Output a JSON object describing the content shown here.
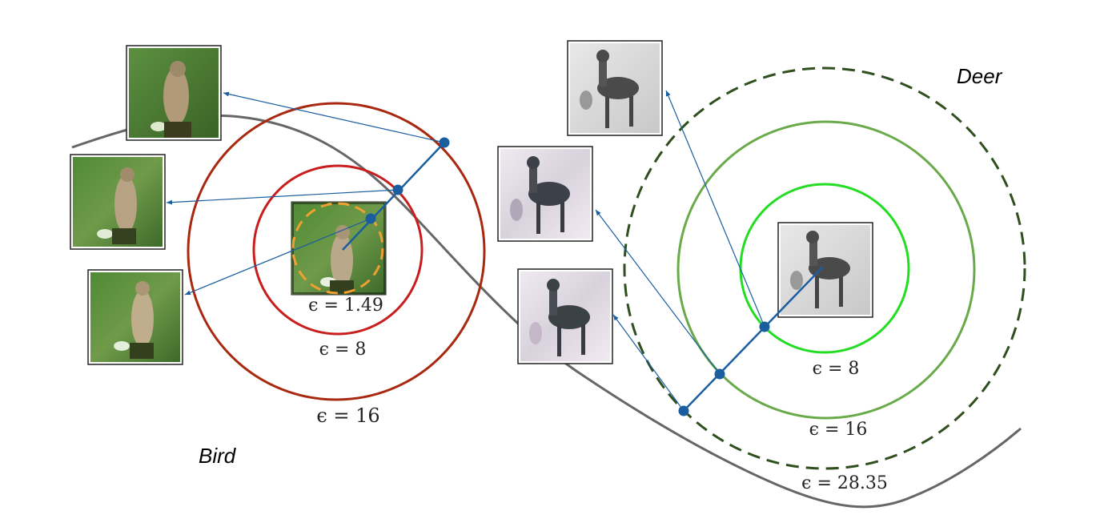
{
  "classes": {
    "bird": "Bird",
    "deer": "Deer"
  },
  "bird_epsilons": {
    "e1": "ϵ = 1.49",
    "e2": "ϵ = 8",
    "e3": "ϵ = 16"
  },
  "deer_epsilons": {
    "e1": "ϵ = 8",
    "e2": "ϵ = 16",
    "e3": "ϵ = 28.35"
  },
  "colors": {
    "bird_inner_dashed": "#f0a030",
    "bird_ring_8": "#c81e1e",
    "bird_ring_16": "#a82810",
    "deer_ring_8": "#22dd22",
    "deer_ring_16": "#6aaa4a",
    "deer_ring_dashed": "#2f4f1f",
    "path": "#1a5ea0",
    "boundary": "#666666",
    "bird_image": "#5c8a3c",
    "deer_image": "#d4d4d4"
  },
  "thumbnails": {
    "bird": [
      "bird-original-image",
      "bird-adv-eps-1.49",
      "bird-adv-eps-8",
      "bird-adv-eps-16"
    ],
    "deer": [
      "deer-original-image",
      "deer-adv-eps-8",
      "deer-adv-eps-16",
      "deer-adv-eps-28.35"
    ]
  }
}
